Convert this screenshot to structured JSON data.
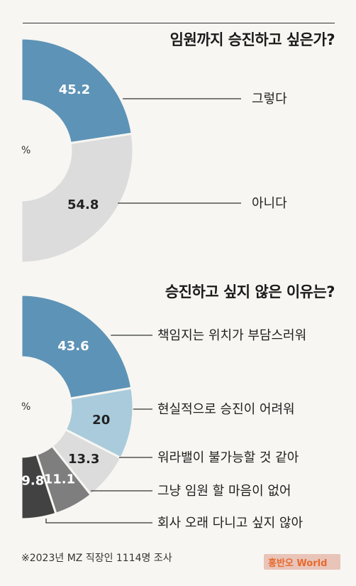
{
  "chart_data": [
    {
      "type": "pie",
      "title": "임원까지 승진하고 싶은가?",
      "unit": "%",
      "categories": [
        "그렇다",
        "아니다"
      ],
      "values": [
        45.2,
        54.8
      ],
      "colors": [
        "#5d93b6",
        "#dcdcdc"
      ],
      "label_colors": [
        "#ffffff",
        "#222222"
      ]
    },
    {
      "type": "pie",
      "title": "승진하고 싶지 않은 이유는?",
      "unit": "%",
      "categories": [
        "책임지는 위치가 부담스러워",
        "현실적으로 승진이 어려워",
        "워라밸이 불가능할 것 같아",
        "그냥 임원 할 마음이 없어",
        "회사 오래 다니고 싶지 않아"
      ],
      "values": [
        43.6,
        20,
        13.3,
        11.1,
        9.8
      ],
      "value_labels": [
        "43.6",
        "20",
        "13.3",
        "11.1",
        "9.8"
      ],
      "colors": [
        "#5d93b6",
        "#a9cbdc",
        "#dcdcdc",
        "#7e7e7e",
        "#424242"
      ],
      "label_colors": [
        "#ffffff",
        "#222222",
        "#222222",
        "#ffffff",
        "#ffffff"
      ]
    }
  ],
  "footnote": "※2023년 MZ 직장인 1114명 조사",
  "watermark": "홍반오 World"
}
